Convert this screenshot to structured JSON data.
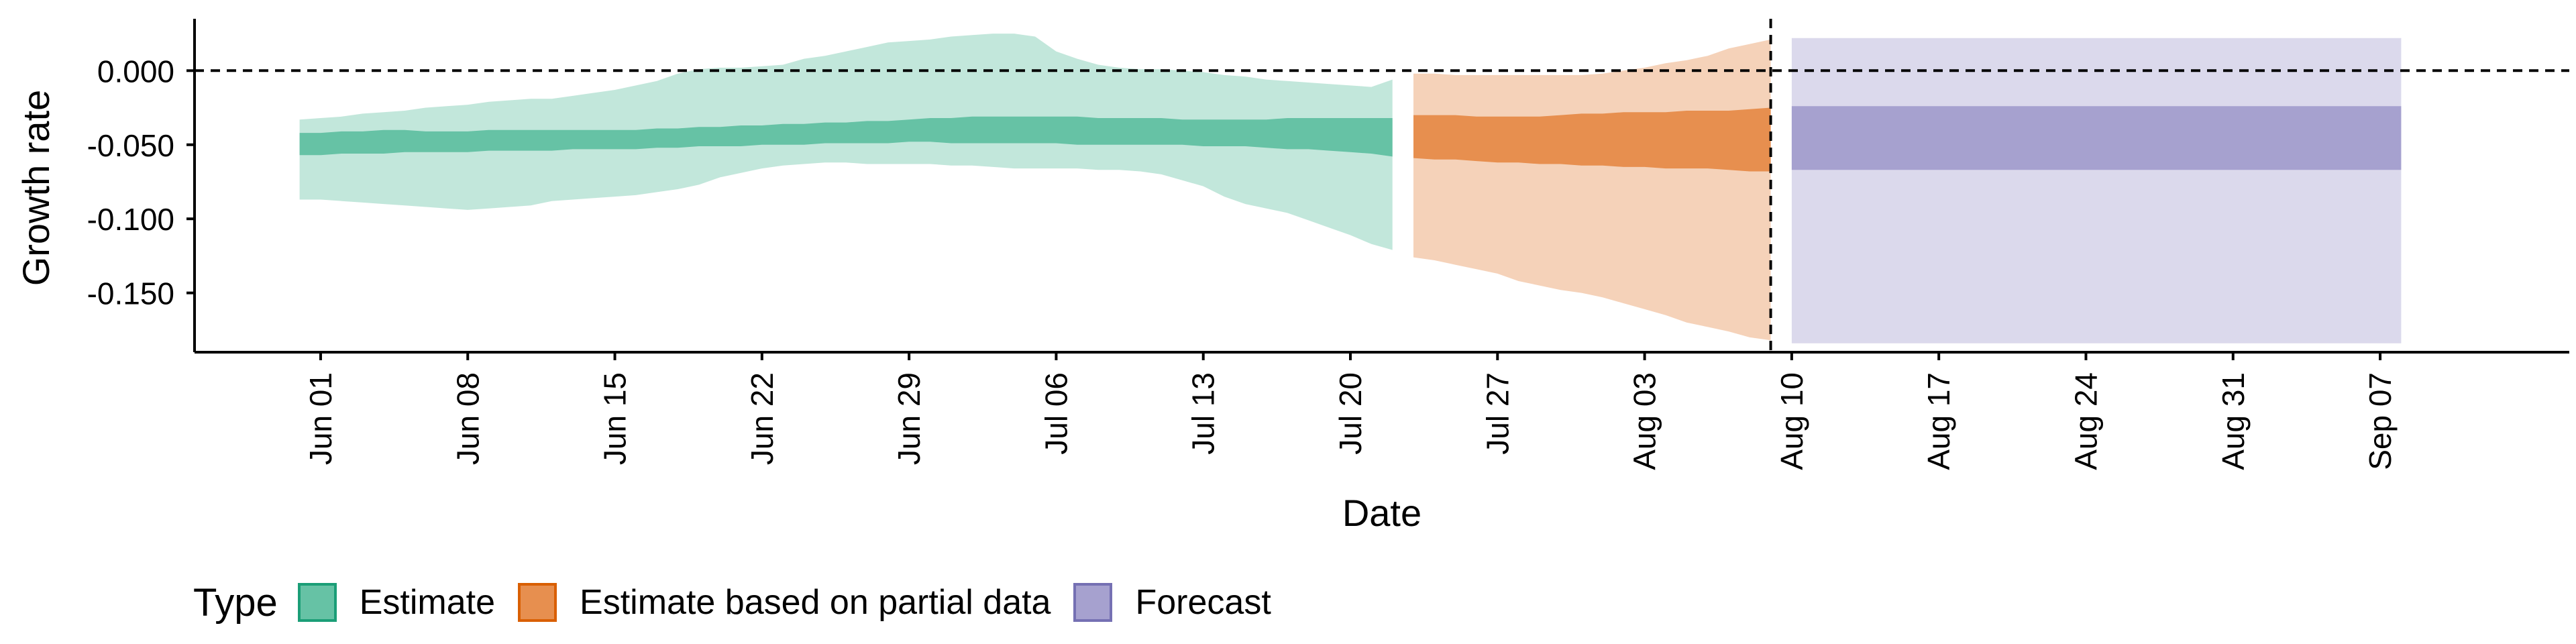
{
  "chart_data": {
    "type": "area",
    "title": "",
    "xlabel": "Date",
    "ylabel": "Growth rate",
    "ylim": [
      -0.19,
      0.035
    ],
    "xlim": [
      "2020-05-26",
      "2020-09-16"
    ],
    "yticks": [
      0.0,
      -0.05,
      -0.1,
      -0.15
    ],
    "ytick_labels": [
      "0.000",
      "-0.050",
      "-0.100",
      "-0.150"
    ],
    "xticks": [
      "2020-06-01",
      "2020-06-08",
      "2020-06-15",
      "2020-06-22",
      "2020-06-29",
      "2020-07-06",
      "2020-07-13",
      "2020-07-20",
      "2020-07-27",
      "2020-08-03",
      "2020-08-10",
      "2020-08-17",
      "2020-08-24",
      "2020-08-31",
      "2020-09-07"
    ],
    "xtick_labels": [
      "Jun 01",
      "Jun 08",
      "Jun 15",
      "Jun 22",
      "Jun 29",
      "Jul 06",
      "Jul 13",
      "Jul 20",
      "Jul 27",
      "Aug 03",
      "Aug 10",
      "Aug 17",
      "Aug 24",
      "Aug 31",
      "Sep 07"
    ],
    "reference_lines": [
      {
        "axis": "y",
        "value": 0,
        "style": "dashed"
      },
      {
        "axis": "x",
        "value": "2020-08-09",
        "style": "dashed"
      }
    ],
    "grid": false,
    "legend": {
      "title": "Type",
      "position": "bottom-left"
    },
    "series": [
      {
        "name": "Estimate",
        "fill_color": "#66c2a5",
        "line_color": "#1b9e77",
        "x": [
          "2020-05-31",
          "2020-06-01",
          "2020-06-02",
          "2020-06-03",
          "2020-06-04",
          "2020-06-05",
          "2020-06-06",
          "2020-06-07",
          "2020-06-08",
          "2020-06-09",
          "2020-06-10",
          "2020-06-11",
          "2020-06-12",
          "2020-06-13",
          "2020-06-14",
          "2020-06-15",
          "2020-06-16",
          "2020-06-17",
          "2020-06-18",
          "2020-06-19",
          "2020-06-20",
          "2020-06-21",
          "2020-06-22",
          "2020-06-23",
          "2020-06-24",
          "2020-06-25",
          "2020-06-26",
          "2020-06-27",
          "2020-06-28",
          "2020-06-29",
          "2020-06-30",
          "2020-07-01",
          "2020-07-02",
          "2020-07-03",
          "2020-07-04",
          "2020-07-05",
          "2020-07-06",
          "2020-07-07",
          "2020-07-08",
          "2020-07-09",
          "2020-07-10",
          "2020-07-11",
          "2020-07-12",
          "2020-07-13",
          "2020-07-14",
          "2020-07-15",
          "2020-07-16",
          "2020-07-17",
          "2020-07-18",
          "2020-07-19",
          "2020-07-20",
          "2020-07-21",
          "2020-07-22"
        ],
        "upper_90": [
          -0.033,
          -0.032,
          -0.031,
          -0.029,
          -0.028,
          -0.027,
          -0.025,
          -0.024,
          -0.023,
          -0.021,
          -0.02,
          -0.019,
          -0.019,
          -0.017,
          -0.015,
          -0.013,
          -0.01,
          -0.007,
          -0.002,
          0.001,
          0.002,
          0.002,
          0.003,
          0.004,
          0.008,
          0.01,
          0.013,
          0.016,
          0.019,
          0.02,
          0.021,
          0.023,
          0.024,
          0.025,
          0.025,
          0.023,
          0.013,
          0.008,
          0.004,
          0.002,
          0.001,
          0.001,
          0.0,
          -0.001,
          -0.003,
          -0.004,
          -0.006,
          -0.007,
          -0.008,
          -0.009,
          -0.01,
          -0.011,
          -0.006
        ],
        "upper_50": [
          -0.042,
          -0.042,
          -0.041,
          -0.041,
          -0.04,
          -0.04,
          -0.041,
          -0.041,
          -0.041,
          -0.04,
          -0.04,
          -0.04,
          -0.04,
          -0.04,
          -0.04,
          -0.04,
          -0.04,
          -0.039,
          -0.039,
          -0.038,
          -0.038,
          -0.037,
          -0.037,
          -0.036,
          -0.036,
          -0.035,
          -0.035,
          -0.034,
          -0.034,
          -0.033,
          -0.032,
          -0.032,
          -0.031,
          -0.031,
          -0.031,
          -0.031,
          -0.031,
          -0.031,
          -0.032,
          -0.032,
          -0.032,
          -0.032,
          -0.033,
          -0.033,
          -0.033,
          -0.033,
          -0.033,
          -0.032,
          -0.032,
          -0.032,
          -0.032,
          -0.032,
          -0.032
        ],
        "lower_50": [
          -0.057,
          -0.057,
          -0.056,
          -0.056,
          -0.056,
          -0.055,
          -0.055,
          -0.055,
          -0.055,
          -0.054,
          -0.054,
          -0.054,
          -0.054,
          -0.053,
          -0.053,
          -0.053,
          -0.053,
          -0.052,
          -0.052,
          -0.051,
          -0.051,
          -0.051,
          -0.05,
          -0.05,
          -0.05,
          -0.049,
          -0.049,
          -0.049,
          -0.049,
          -0.048,
          -0.048,
          -0.049,
          -0.049,
          -0.049,
          -0.049,
          -0.049,
          -0.049,
          -0.05,
          -0.05,
          -0.05,
          -0.05,
          -0.05,
          -0.05,
          -0.051,
          -0.051,
          -0.051,
          -0.052,
          -0.053,
          -0.053,
          -0.054,
          -0.055,
          -0.056,
          -0.058
        ],
        "lower_90": [
          -0.087,
          -0.087,
          -0.088,
          -0.089,
          -0.09,
          -0.091,
          -0.092,
          -0.093,
          -0.094,
          -0.093,
          -0.092,
          -0.091,
          -0.088,
          -0.087,
          -0.086,
          -0.085,
          -0.084,
          -0.082,
          -0.08,
          -0.077,
          -0.072,
          -0.069,
          -0.066,
          -0.064,
          -0.063,
          -0.062,
          -0.062,
          -0.063,
          -0.063,
          -0.063,
          -0.063,
          -0.064,
          -0.064,
          -0.065,
          -0.066,
          -0.066,
          -0.066,
          -0.066,
          -0.067,
          -0.067,
          -0.068,
          -0.07,
          -0.074,
          -0.078,
          -0.085,
          -0.09,
          -0.093,
          -0.096,
          -0.101,
          -0.106,
          -0.111,
          -0.117,
          -0.121
        ]
      },
      {
        "name": "Estimate based on partial data",
        "fill_color": "#e78f4f",
        "line_color": "#d95f02",
        "x": [
          "2020-07-23",
          "2020-07-24",
          "2020-07-25",
          "2020-07-26",
          "2020-07-27",
          "2020-07-28",
          "2020-07-29",
          "2020-07-30",
          "2020-07-31",
          "2020-08-01",
          "2020-08-02",
          "2020-08-03",
          "2020-08-04",
          "2020-08-05",
          "2020-08-06",
          "2020-08-07",
          "2020-08-08",
          "2020-08-09"
        ],
        "upper_90": [
          -0.002,
          -0.002,
          -0.003,
          -0.003,
          -0.003,
          -0.003,
          -0.003,
          -0.003,
          -0.003,
          -0.002,
          0.0,
          0.002,
          0.005,
          0.007,
          0.01,
          0.015,
          0.018,
          0.021
        ],
        "upper_50": [
          -0.03,
          -0.03,
          -0.03,
          -0.031,
          -0.031,
          -0.031,
          -0.031,
          -0.03,
          -0.029,
          -0.029,
          -0.028,
          -0.028,
          -0.028,
          -0.027,
          -0.027,
          -0.027,
          -0.026,
          -0.025
        ],
        "lower_50": [
          -0.059,
          -0.06,
          -0.06,
          -0.061,
          -0.062,
          -0.062,
          -0.063,
          -0.063,
          -0.064,
          -0.064,
          -0.065,
          -0.065,
          -0.066,
          -0.066,
          -0.066,
          -0.067,
          -0.068,
          -0.068
        ],
        "lower_90": [
          -0.126,
          -0.128,
          -0.131,
          -0.134,
          -0.137,
          -0.142,
          -0.145,
          -0.148,
          -0.15,
          -0.153,
          -0.157,
          -0.161,
          -0.165,
          -0.17,
          -0.173,
          -0.176,
          -0.18,
          -0.182
        ]
      },
      {
        "name": "Forecast",
        "fill_color": "#a6a1cf",
        "line_color": "#7570b3",
        "x": [
          "2020-08-10",
          "2020-09-08"
        ],
        "upper_90": [
          0.022,
          0.022
        ],
        "upper_50": [
          -0.024,
          -0.024
        ],
        "lower_50": [
          -0.067,
          -0.067
        ],
        "lower_90": [
          -0.184,
          -0.184
        ]
      }
    ]
  }
}
